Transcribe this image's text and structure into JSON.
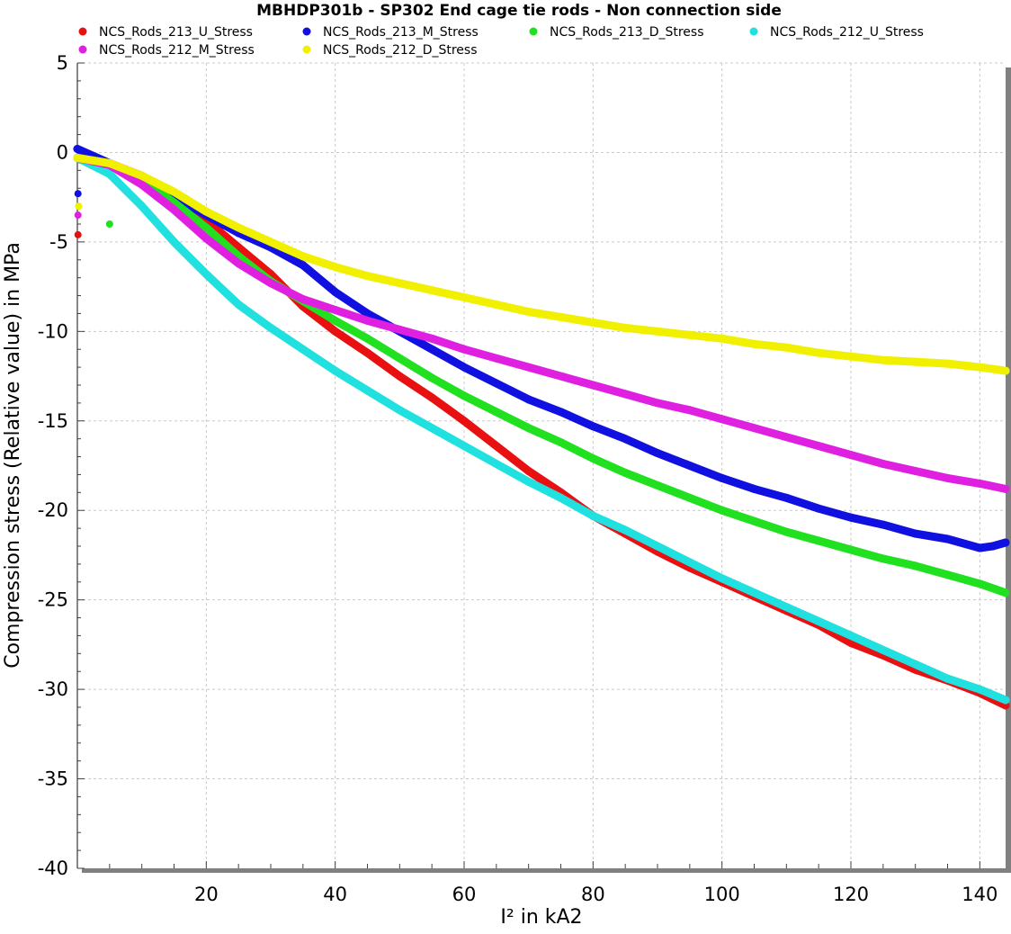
{
  "chart_data": {
    "type": "scatter",
    "title": "MBHDP301b - SP302 End cage tie rods - Non connection side",
    "xlabel": "I² in kA2",
    "ylabel": "Compression stress (Relative value) in MPa",
    "xlim": [
      0,
      144
    ],
    "ylim": [
      -40,
      5
    ],
    "xticks": [
      20,
      40,
      60,
      80,
      100,
      120,
      140
    ],
    "yticks": [
      5,
      0,
      -5,
      -10,
      -15,
      -20,
      -25,
      -30,
      -35,
      -40
    ],
    "grid": true,
    "legend_position": "top",
    "series": [
      {
        "name": "NCS_Rods_213_U_Stress",
        "color": "#e81010",
        "points": [
          [
            0.5,
            -0.4
          ],
          [
            5,
            -0.6
          ],
          [
            10,
            -1.3
          ],
          [
            15,
            -2.5
          ],
          [
            20,
            -3.8
          ],
          [
            25,
            -5.3
          ],
          [
            30,
            -6.8
          ],
          [
            35,
            -8.6
          ],
          [
            40,
            -10.0
          ],
          [
            45,
            -11.2
          ],
          [
            50,
            -12.5
          ],
          [
            55,
            -13.7
          ],
          [
            60,
            -15.0
          ],
          [
            65,
            -16.4
          ],
          [
            70,
            -17.8
          ],
          [
            75,
            -19.0
          ],
          [
            80,
            -20.3
          ],
          [
            85,
            -21.3
          ],
          [
            90,
            -22.3
          ],
          [
            95,
            -23.2
          ],
          [
            100,
            -24.0
          ],
          [
            105,
            -24.8
          ],
          [
            110,
            -25.6
          ],
          [
            115,
            -26.4
          ],
          [
            120,
            -27.4
          ],
          [
            125,
            -28.1
          ],
          [
            130,
            -28.9
          ],
          [
            135,
            -29.5
          ],
          [
            140,
            -30.2
          ],
          [
            144,
            -30.9
          ]
        ]
      },
      {
        "name": "NCS_Rods_213_M_Stress",
        "color": "#1010e0",
        "points": [
          [
            0,
            0.2
          ],
          [
            5,
            -0.6
          ],
          [
            10,
            -1.5
          ],
          [
            15,
            -2.5
          ],
          [
            20,
            -3.5
          ],
          [
            25,
            -4.5
          ],
          [
            30,
            -5.3
          ],
          [
            35,
            -6.3
          ],
          [
            40,
            -7.8
          ],
          [
            45,
            -9.0
          ],
          [
            50,
            -10.0
          ],
          [
            55,
            -11.0
          ],
          [
            60,
            -12.0
          ],
          [
            65,
            -12.9
          ],
          [
            70,
            -13.8
          ],
          [
            75,
            -14.5
          ],
          [
            80,
            -15.3
          ],
          [
            85,
            -16.0
          ],
          [
            90,
            -16.8
          ],
          [
            95,
            -17.5
          ],
          [
            100,
            -18.2
          ],
          [
            105,
            -18.8
          ],
          [
            110,
            -19.3
          ],
          [
            115,
            -19.9
          ],
          [
            120,
            -20.4
          ],
          [
            125,
            -20.8
          ],
          [
            130,
            -21.3
          ],
          [
            135,
            -21.6
          ],
          [
            140,
            -22.1
          ],
          [
            142,
            -22.0
          ],
          [
            144,
            -21.8
          ]
        ]
      },
      {
        "name": "NCS_Rods_213_D_Stress",
        "color": "#20e020",
        "points": [
          [
            0,
            -0.3
          ],
          [
            5,
            -0.6
          ],
          [
            10,
            -1.5
          ],
          [
            15,
            -2.8
          ],
          [
            20,
            -4.2
          ],
          [
            25,
            -5.8
          ],
          [
            30,
            -7.2
          ],
          [
            35,
            -8.3
          ],
          [
            40,
            -9.4
          ],
          [
            45,
            -10.4
          ],
          [
            50,
            -11.5
          ],
          [
            55,
            -12.6
          ],
          [
            60,
            -13.6
          ],
          [
            65,
            -14.5
          ],
          [
            70,
            -15.4
          ],
          [
            75,
            -16.2
          ],
          [
            80,
            -17.1
          ],
          [
            85,
            -17.9
          ],
          [
            90,
            -18.6
          ],
          [
            95,
            -19.3
          ],
          [
            100,
            -20.0
          ],
          [
            105,
            -20.6
          ],
          [
            110,
            -21.2
          ],
          [
            115,
            -21.7
          ],
          [
            120,
            -22.2
          ],
          [
            125,
            -22.7
          ],
          [
            130,
            -23.1
          ],
          [
            135,
            -23.6
          ],
          [
            140,
            -24.1
          ],
          [
            144,
            -24.6
          ]
        ]
      },
      {
        "name": "NCS_Rods_212_U_Stress",
        "color": "#20e0e0",
        "points": [
          [
            0,
            -0.3
          ],
          [
            5,
            -1.2
          ],
          [
            10,
            -3.0
          ],
          [
            15,
            -5.0
          ],
          [
            20,
            -6.8
          ],
          [
            25,
            -8.5
          ],
          [
            30,
            -9.8
          ],
          [
            35,
            -11.0
          ],
          [
            40,
            -12.2
          ],
          [
            45,
            -13.3
          ],
          [
            50,
            -14.4
          ],
          [
            55,
            -15.4
          ],
          [
            60,
            -16.4
          ],
          [
            65,
            -17.4
          ],
          [
            70,
            -18.4
          ],
          [
            75,
            -19.3
          ],
          [
            80,
            -20.3
          ],
          [
            85,
            -21.1
          ],
          [
            90,
            -22.0
          ],
          [
            95,
            -22.9
          ],
          [
            100,
            -23.8
          ],
          [
            105,
            -24.6
          ],
          [
            110,
            -25.4
          ],
          [
            115,
            -26.2
          ],
          [
            120,
            -27.0
          ],
          [
            125,
            -27.8
          ],
          [
            130,
            -28.6
          ],
          [
            135,
            -29.4
          ],
          [
            140,
            -30.0
          ],
          [
            144,
            -30.6
          ]
        ]
      },
      {
        "name": "NCS_Rods_212_M_Stress",
        "color": "#e020e0",
        "points": [
          [
            0,
            -0.3
          ],
          [
            5,
            -0.7
          ],
          [
            10,
            -1.8
          ],
          [
            15,
            -3.2
          ],
          [
            20,
            -4.8
          ],
          [
            25,
            -6.2
          ],
          [
            30,
            -7.3
          ],
          [
            35,
            -8.2
          ],
          [
            40,
            -8.8
          ],
          [
            45,
            -9.4
          ],
          [
            50,
            -9.9
          ],
          [
            55,
            -10.4
          ],
          [
            60,
            -11.0
          ],
          [
            65,
            -11.5
          ],
          [
            70,
            -12.0
          ],
          [
            75,
            -12.5
          ],
          [
            80,
            -13.0
          ],
          [
            85,
            -13.5
          ],
          [
            90,
            -14.0
          ],
          [
            95,
            -14.4
          ],
          [
            100,
            -14.9
          ],
          [
            105,
            -15.4
          ],
          [
            110,
            -15.9
          ],
          [
            115,
            -16.4
          ],
          [
            120,
            -16.9
          ],
          [
            125,
            -17.4
          ],
          [
            130,
            -17.8
          ],
          [
            135,
            -18.2
          ],
          [
            140,
            -18.5
          ],
          [
            144,
            -18.8
          ]
        ]
      },
      {
        "name": "NCS_Rods_212_D_Stress",
        "color": "#f0f000",
        "points": [
          [
            0,
            -0.3
          ],
          [
            5,
            -0.6
          ],
          [
            10,
            -1.3
          ],
          [
            15,
            -2.2
          ],
          [
            20,
            -3.3
          ],
          [
            25,
            -4.2
          ],
          [
            30,
            -5.0
          ],
          [
            35,
            -5.8
          ],
          [
            40,
            -6.4
          ],
          [
            45,
            -6.9
          ],
          [
            50,
            -7.3
          ],
          [
            55,
            -7.7
          ],
          [
            60,
            -8.1
          ],
          [
            65,
            -8.5
          ],
          [
            70,
            -8.9
          ],
          [
            75,
            -9.2
          ],
          [
            80,
            -9.5
          ],
          [
            85,
            -9.8
          ],
          [
            90,
            -10.0
          ],
          [
            95,
            -10.2
          ],
          [
            100,
            -10.4
          ],
          [
            105,
            -10.7
          ],
          [
            110,
            -10.9
          ],
          [
            115,
            -11.2
          ],
          [
            120,
            -11.4
          ],
          [
            125,
            -11.6
          ],
          [
            130,
            -11.7
          ],
          [
            135,
            -11.8
          ],
          [
            140,
            -12.0
          ],
          [
            144,
            -12.2
          ]
        ]
      }
    ],
    "outliers": [
      {
        "series": "NCS_Rods_213_U_Stress",
        "x": 0.1,
        "y": -4.6
      },
      {
        "series": "NCS_Rods_213_M_Stress",
        "x": 0.1,
        "y": -2.3
      },
      {
        "series": "NCS_Rods_213_D_Stress",
        "x": 5,
        "y": -4.0
      },
      {
        "series": "NCS_Rods_212_M_Stress",
        "x": 0.1,
        "y": -3.5
      },
      {
        "series": "NCS_Rods_212_D_Stress",
        "x": 0.2,
        "y": -3.0
      }
    ]
  }
}
